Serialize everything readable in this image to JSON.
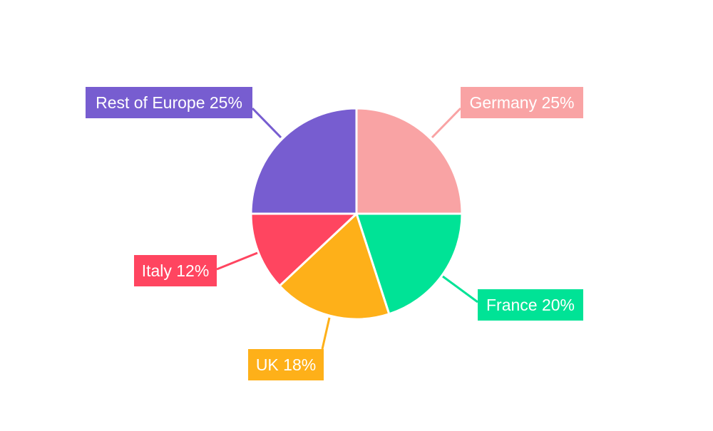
{
  "chart_data": {
    "type": "pie",
    "categories": [
      "Germany",
      "France",
      "UK",
      "Italy",
      "Rest of Europe"
    ],
    "values": [
      25,
      20,
      18,
      12,
      25
    ],
    "labels": [
      "Germany 25%",
      "France 20%",
      "UK 18%",
      "Italy 12%",
      "Rest of Europe 25%"
    ],
    "colors": [
      "#F9A3A4",
      "#00E396",
      "#FEB019",
      "#FF4560",
      "#775DD0"
    ],
    "start_angle": "12 o'clock",
    "direction": "clockwise",
    "legend": "none"
  }
}
